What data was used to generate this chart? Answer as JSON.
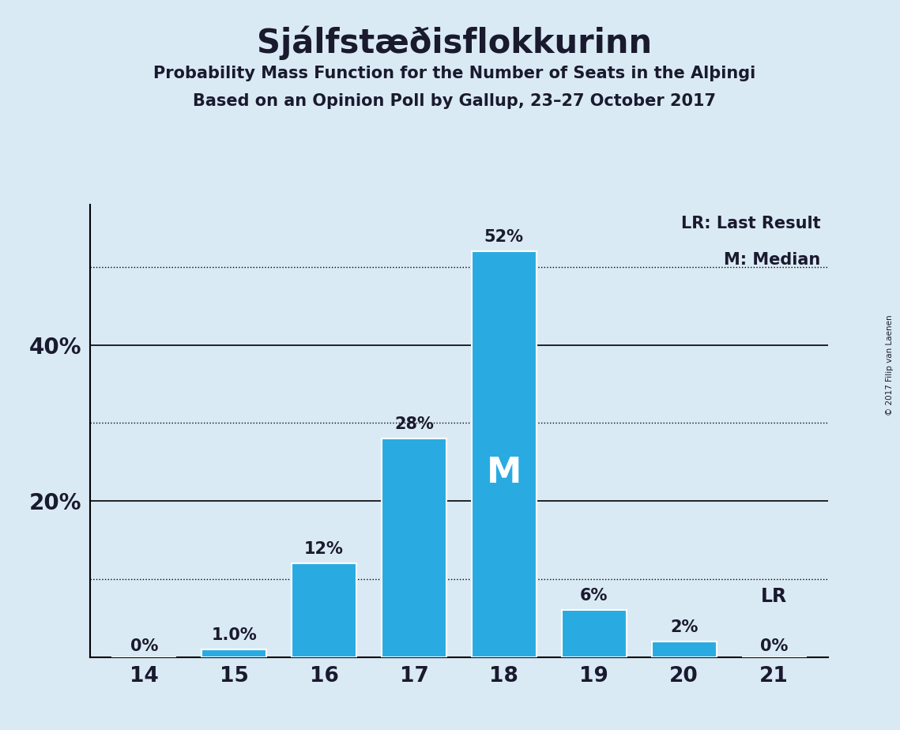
{
  "title": "Sjálfstæðisflokkurinn",
  "subtitle1": "Probability Mass Function for the Number of Seats in the Alþingi",
  "subtitle2": "Based on an Opinion Poll by Gallup, 23–27 October 2017",
  "copyright": "© 2017 Filip van Laenen",
  "categories": [
    14,
    15,
    16,
    17,
    18,
    19,
    20,
    21
  ],
  "values": [
    0.0,
    1.0,
    12.0,
    28.0,
    52.0,
    6.0,
    2.0,
    0.0
  ],
  "bar_color": "#29abe2",
  "bar_edge_color": "#ffffff",
  "background_color": "#daeaf5",
  "text_color": "#1a1a2e",
  "solid_gridlines": [
    20,
    40
  ],
  "dotted_gridlines": [
    10,
    30,
    50
  ],
  "median_seat": 18,
  "lr_seat": 21,
  "legend_lr": "LR: Last Result",
  "legend_m": "M: Median",
  "bar_labels": [
    "0%",
    "1.0%",
    "12%",
    "28%",
    "52%",
    "6%",
    "2%",
    "0%"
  ],
  "ylim": [
    0,
    58
  ]
}
